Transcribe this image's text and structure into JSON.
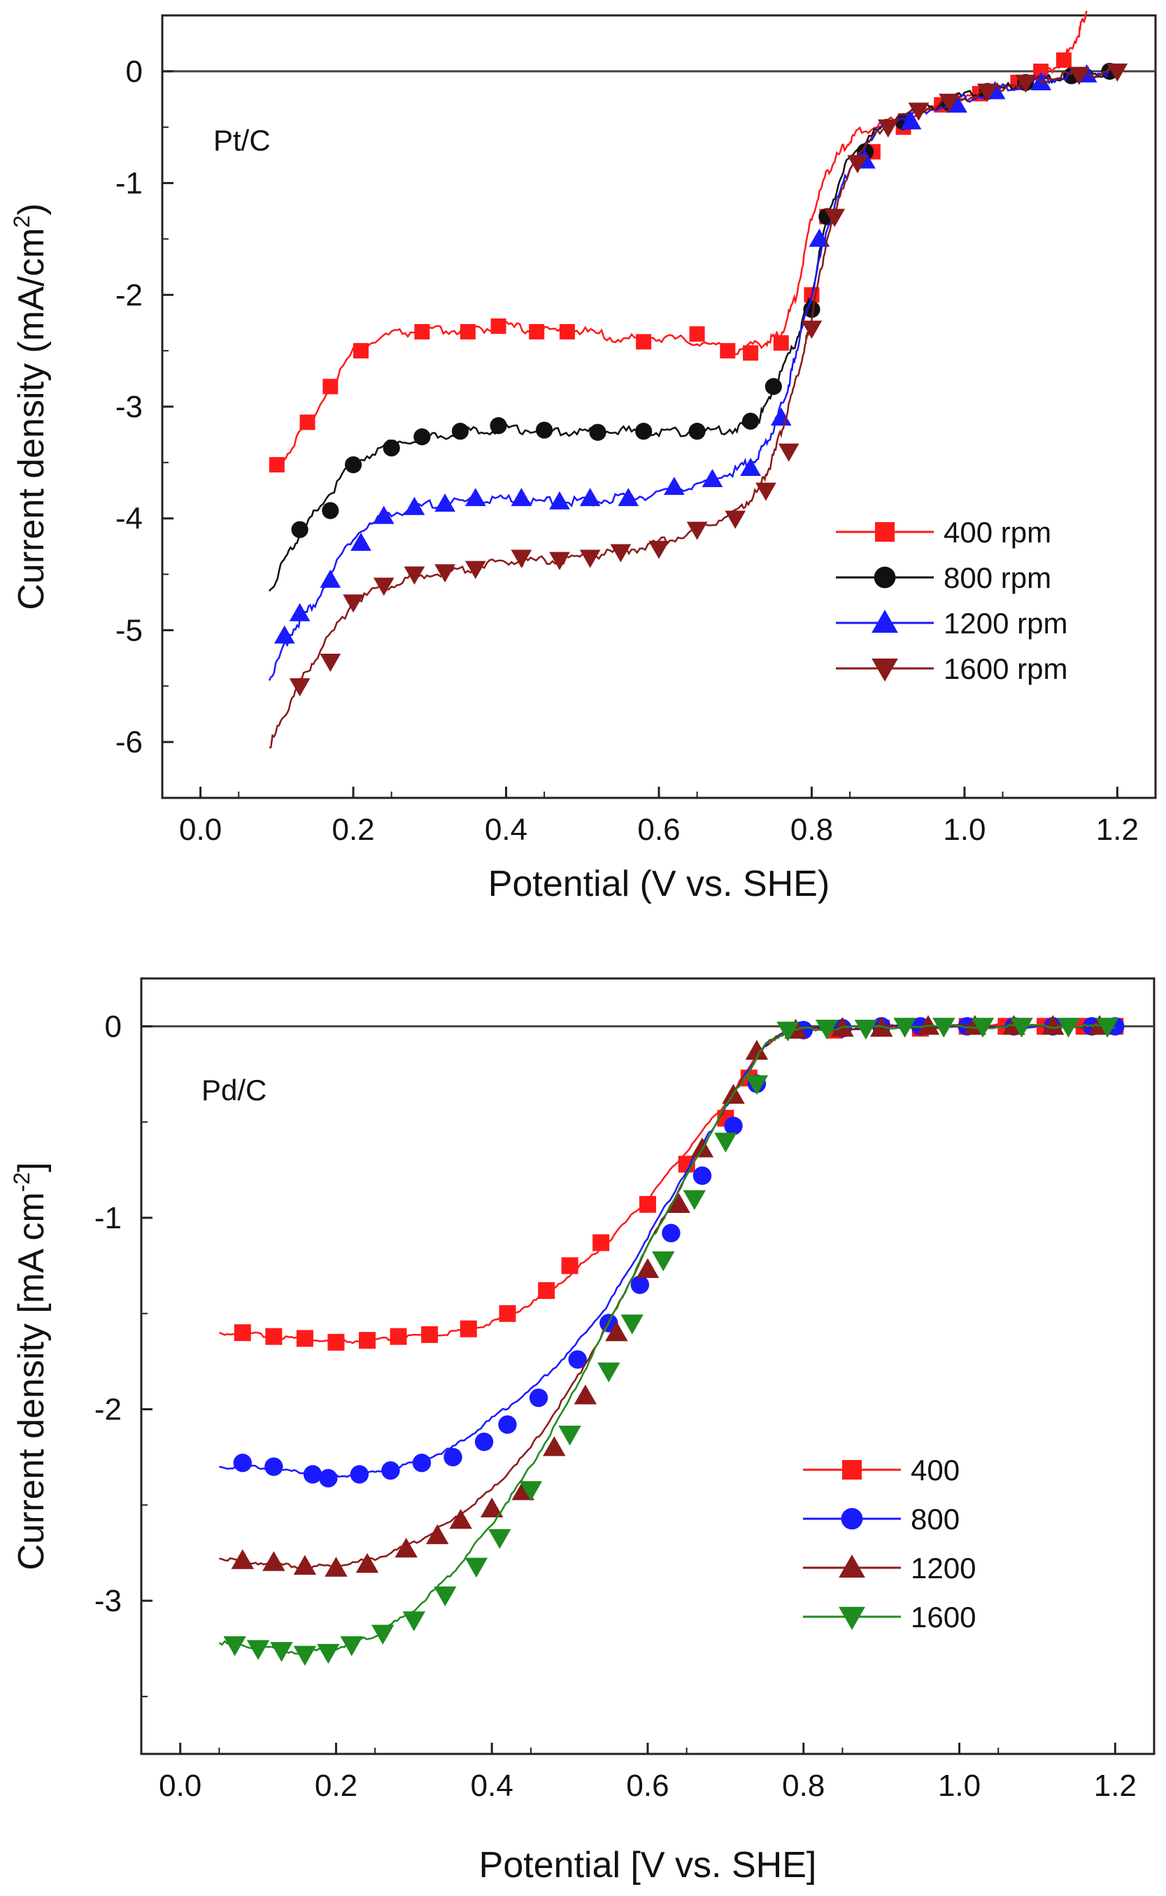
{
  "chart_data": [
    {
      "type": "line",
      "id": "top",
      "panel_label": "Pt/C",
      "xlabel": "Potential (V vs. SHE)",
      "ylabel_main": "Current density (mA/cm",
      "ylabel_sup": "2",
      "ylabel_end": ")",
      "xlim": [
        -0.05,
        1.25
      ],
      "ylim": [
        -6.5,
        0.5
      ],
      "xticks": [
        0.0,
        0.2,
        0.4,
        0.6,
        0.8,
        1.0,
        1.2
      ],
      "xtick_labels": [
        "0.0",
        "0.2",
        "0.4",
        "0.6",
        "0.8",
        "1.0",
        "1.2"
      ],
      "yticks": [
        0,
        -1,
        -2,
        -3,
        -4,
        -5,
        -6
      ],
      "ytick_labels": [
        "0",
        "-1",
        "-2",
        "-3",
        "-4",
        "-5",
        "-6"
      ],
      "zero_line": true,
      "legend_position": "lower-right",
      "series": [
        {
          "name": "400 rpm",
          "marker": "square",
          "color": "#ff1a1a",
          "x": [
            0.1,
            0.14,
            0.2,
            0.25,
            0.3,
            0.35,
            0.4,
            0.45,
            0.5,
            0.55,
            0.6,
            0.65,
            0.7,
            0.74,
            0.76,
            0.78,
            0.8,
            0.82,
            0.84,
            0.86,
            0.9,
            0.95,
            1.0,
            1.05,
            1.1,
            1.13,
            1.15,
            1.16
          ],
          "y": [
            -3.55,
            -3.15,
            -2.5,
            -2.35,
            -2.32,
            -2.32,
            -2.28,
            -2.33,
            -2.32,
            -2.4,
            -2.38,
            -2.42,
            -2.5,
            -2.42,
            -2.35,
            -2.0,
            -1.3,
            -0.9,
            -0.7,
            -0.55,
            -0.45,
            -0.35,
            -0.25,
            -0.15,
            -0.05,
            0.1,
            0.35,
            0.55
          ],
          "mx": [
            0.1,
            0.14,
            0.17,
            0.21,
            0.29,
            0.35,
            0.39,
            0.44,
            0.48,
            0.58,
            0.65,
            0.69,
            0.72,
            0.76,
            0.8,
            0.82,
            0.88,
            0.92,
            0.97,
            1.02,
            1.07,
            1.1,
            1.13
          ],
          "my": [
            -3.52,
            -3.14,
            -2.82,
            -2.5,
            -2.33,
            -2.33,
            -2.28,
            -2.33,
            -2.33,
            -2.42,
            -2.35,
            -2.5,
            -2.52,
            -2.43,
            -2.0,
            -1.3,
            -0.72,
            -0.5,
            -0.3,
            -0.2,
            -0.1,
            0.0,
            0.1
          ]
        },
        {
          "name": "800 rpm",
          "marker": "circle",
          "color": "#111111",
          "x": [
            0.09,
            0.12,
            0.15,
            0.2,
            0.25,
            0.3,
            0.35,
            0.4,
            0.45,
            0.5,
            0.55,
            0.6,
            0.65,
            0.7,
            0.73,
            0.75,
            0.78,
            0.8,
            0.82,
            0.85,
            0.9,
            0.95,
            1.0,
            1.05,
            1.1,
            1.15,
            1.2
          ],
          "y": [
            -4.65,
            -4.25,
            -3.95,
            -3.5,
            -3.32,
            -3.28,
            -3.22,
            -3.2,
            -3.22,
            -3.22,
            -3.22,
            -3.23,
            -3.22,
            -3.2,
            -3.12,
            -2.85,
            -2.4,
            -2.0,
            -1.3,
            -0.75,
            -0.45,
            -0.33,
            -0.22,
            -0.15,
            -0.08,
            -0.03,
            0.0
          ],
          "mx": [
            0.13,
            0.17,
            0.2,
            0.25,
            0.29,
            0.34,
            0.39,
            0.45,
            0.52,
            0.58,
            0.65,
            0.72,
            0.75,
            0.8,
            0.82,
            0.87,
            0.92,
            0.98,
            1.03,
            1.08,
            1.14,
            1.19
          ],
          "my": [
            -4.1,
            -3.93,
            -3.52,
            -3.37,
            -3.27,
            -3.22,
            -3.17,
            -3.21,
            -3.23,
            -3.22,
            -3.22,
            -3.13,
            -2.82,
            -2.13,
            -1.3,
            -0.72,
            -0.45,
            -0.28,
            -0.18,
            -0.1,
            -0.04,
            0.0
          ]
        },
        {
          "name": "1200 rpm",
          "marker": "triangle-up",
          "color": "#1a1aff",
          "x": [
            0.09,
            0.12,
            0.15,
            0.2,
            0.25,
            0.3,
            0.35,
            0.4,
            0.45,
            0.5,
            0.55,
            0.6,
            0.65,
            0.7,
            0.73,
            0.75,
            0.77,
            0.78,
            0.8,
            0.82,
            0.85,
            0.9,
            0.95,
            1.0,
            1.05,
            1.1,
            1.15,
            1.2
          ],
          "y": [
            -5.45,
            -5.0,
            -4.75,
            -4.15,
            -3.95,
            -3.88,
            -3.85,
            -3.83,
            -3.85,
            -3.85,
            -3.82,
            -3.78,
            -3.7,
            -3.58,
            -3.45,
            -3.2,
            -2.8,
            -2.5,
            -2.0,
            -1.4,
            -0.85,
            -0.45,
            -0.35,
            -0.25,
            -0.15,
            -0.08,
            -0.03,
            0.0
          ],
          "mx": [
            0.11,
            0.13,
            0.17,
            0.21,
            0.24,
            0.28,
            0.32,
            0.36,
            0.42,
            0.47,
            0.51,
            0.56,
            0.62,
            0.67,
            0.72,
            0.76,
            0.81,
            0.87,
            0.93,
            0.99,
            1.04,
            1.1,
            1.16
          ],
          "my": [
            -5.05,
            -4.85,
            -4.55,
            -4.22,
            -3.98,
            -3.9,
            -3.87,
            -3.82,
            -3.82,
            -3.85,
            -3.82,
            -3.82,
            -3.72,
            -3.65,
            -3.55,
            -3.1,
            -1.5,
            -0.8,
            -0.45,
            -0.3,
            -0.18,
            -0.1,
            -0.03
          ]
        },
        {
          "name": "1600 rpm",
          "marker": "triangle-down",
          "color": "#8b1a1a",
          "x": [
            0.09,
            0.12,
            0.15,
            0.2,
            0.25,
            0.3,
            0.35,
            0.4,
            0.45,
            0.5,
            0.55,
            0.6,
            0.65,
            0.7,
            0.73,
            0.75,
            0.77,
            0.79,
            0.8,
            0.82,
            0.85,
            0.9,
            0.95,
            1.0,
            1.05,
            1.1,
            1.15,
            1.2
          ],
          "y": [
            -6.05,
            -5.6,
            -5.25,
            -4.75,
            -4.58,
            -4.5,
            -4.45,
            -4.38,
            -4.38,
            -4.35,
            -4.3,
            -4.22,
            -4.1,
            -3.95,
            -3.75,
            -3.45,
            -3.0,
            -2.5,
            -2.2,
            -1.5,
            -0.85,
            -0.45,
            -0.33,
            -0.23,
            -0.13,
            -0.07,
            -0.03,
            0.0
          ],
          "mx": [
            0.13,
            0.17,
            0.2,
            0.24,
            0.28,
            0.32,
            0.36,
            0.42,
            0.47,
            0.51,
            0.55,
            0.6,
            0.65,
            0.7,
            0.74,
            0.77,
            0.8,
            0.83,
            0.86,
            0.9,
            0.94,
            0.98,
            1.03,
            1.08,
            1.15,
            1.2
          ],
          "my": [
            -5.5,
            -5.28,
            -4.75,
            -4.6,
            -4.5,
            -4.48,
            -4.45,
            -4.35,
            -4.37,
            -4.35,
            -4.3,
            -4.27,
            -4.1,
            -4.0,
            -3.75,
            -3.4,
            -2.3,
            -1.3,
            -0.82,
            -0.5,
            -0.35,
            -0.27,
            -0.18,
            -0.1,
            -0.03,
            0.0
          ]
        }
      ]
    },
    {
      "type": "line",
      "id": "bottom",
      "panel_label": "Pd/C",
      "xlabel": "Potential [V vs. SHE]",
      "ylabel_main": "Current density [mA cm",
      "ylabel_sup": "-2",
      "ylabel_end": "]",
      "xlim": [
        -0.05,
        1.25
      ],
      "ylim": [
        -3.8,
        0.25
      ],
      "xticks": [
        0.0,
        0.2,
        0.4,
        0.6,
        0.8,
        1.0,
        1.2
      ],
      "xtick_labels": [
        "0.0",
        "0.2",
        "0.4",
        "0.6",
        "0.8",
        "1.0",
        "1.2"
      ],
      "yticks": [
        0,
        -1,
        -2,
        -3
      ],
      "ytick_labels": [
        "0",
        "-1",
        "-2",
        "-3"
      ],
      "zero_line": true,
      "legend_position": "lower-right",
      "series": [
        {
          "name": "400",
          "marker": "square",
          "color": "#ff1a1a",
          "x": [
            0.05,
            0.1,
            0.15,
            0.2,
            0.25,
            0.3,
            0.35,
            0.4,
            0.45,
            0.5,
            0.55,
            0.6,
            0.65,
            0.7,
            0.75,
            0.78,
            0.85,
            0.95,
            1.05,
            1.15,
            1.2
          ],
          "y": [
            -1.6,
            -1.61,
            -1.63,
            -1.65,
            -1.64,
            -1.62,
            -1.6,
            -1.55,
            -1.45,
            -1.3,
            -1.12,
            -0.9,
            -0.65,
            -0.4,
            -0.1,
            -0.02,
            -0.01,
            0.0,
            0.0,
            0.0,
            0.0
          ],
          "mx": [
            0.08,
            0.12,
            0.16,
            0.2,
            0.24,
            0.28,
            0.32,
            0.37,
            0.42,
            0.47,
            0.5,
            0.54,
            0.6,
            0.65,
            0.7,
            0.73,
            0.79,
            0.84,
            0.9,
            0.95,
            1.01,
            1.06,
            1.11,
            1.16,
            1.2
          ],
          "my": [
            -1.6,
            -1.62,
            -1.63,
            -1.65,
            -1.64,
            -1.62,
            -1.61,
            -1.58,
            -1.5,
            -1.38,
            -1.25,
            -1.13,
            -0.93,
            -0.72,
            -0.48,
            -0.27,
            -0.02,
            -0.02,
            -0.01,
            -0.01,
            0.0,
            0.0,
            0.0,
            0.0,
            0.0
          ]
        },
        {
          "name": "800",
          "marker": "circle",
          "color": "#1a1aff",
          "x": [
            0.05,
            0.1,
            0.15,
            0.2,
            0.25,
            0.3,
            0.35,
            0.4,
            0.45,
            0.5,
            0.55,
            0.6,
            0.65,
            0.7,
            0.75,
            0.78,
            0.85,
            0.95,
            1.05,
            1.15,
            1.2
          ],
          "y": [
            -2.3,
            -2.3,
            -2.33,
            -2.35,
            -2.33,
            -2.28,
            -2.2,
            -2.05,
            -1.9,
            -1.7,
            -1.45,
            -1.1,
            -0.75,
            -0.42,
            -0.1,
            -0.02,
            -0.01,
            0.0,
            0.0,
            0.0,
            0.0
          ],
          "mx": [
            0.08,
            0.12,
            0.17,
            0.19,
            0.23,
            0.27,
            0.31,
            0.35,
            0.39,
            0.42,
            0.46,
            0.51,
            0.55,
            0.59,
            0.63,
            0.67,
            0.71,
            0.74,
            0.8,
            0.85,
            0.9,
            0.95,
            1.01,
            1.07,
            1.12,
            1.17,
            1.2
          ],
          "my": [
            -2.28,
            -2.3,
            -2.34,
            -2.36,
            -2.34,
            -2.32,
            -2.28,
            -2.25,
            -2.17,
            -2.08,
            -1.94,
            -1.74,
            -1.55,
            -1.35,
            -1.08,
            -0.78,
            -0.52,
            -0.3,
            -0.02,
            -0.01,
            0.0,
            0.0,
            0.0,
            0.0,
            0.0,
            0.0,
            0.0
          ]
        },
        {
          "name": "1200",
          "marker": "triangle-up",
          "color": "#8b1a1a",
          "x": [
            0.05,
            0.1,
            0.15,
            0.2,
            0.25,
            0.3,
            0.35,
            0.4,
            0.45,
            0.5,
            0.55,
            0.6,
            0.65,
            0.7,
            0.75,
            0.78,
            0.85,
            0.95,
            1.05,
            1.15,
            1.2
          ],
          "y": [
            -2.78,
            -2.8,
            -2.82,
            -2.82,
            -2.78,
            -2.7,
            -2.58,
            -2.42,
            -2.2,
            -1.9,
            -1.55,
            -1.15,
            -0.78,
            -0.42,
            -0.1,
            -0.02,
            -0.01,
            0.0,
            0.0,
            0.0,
            0.0
          ],
          "mx": [
            0.08,
            0.12,
            0.16,
            0.2,
            0.24,
            0.29,
            0.33,
            0.36,
            0.4,
            0.44,
            0.48,
            0.52,
            0.56,
            0.6,
            0.64,
            0.67,
            0.71,
            0.74,
            0.79,
            0.85,
            0.9,
            0.96,
            1.02,
            1.07,
            1.12,
            1.18
          ],
          "my": [
            -2.79,
            -2.8,
            -2.82,
            -2.83,
            -2.81,
            -2.73,
            -2.66,
            -2.58,
            -2.52,
            -2.43,
            -2.2,
            -1.93,
            -1.6,
            -1.27,
            -0.93,
            -0.64,
            -0.36,
            -0.13,
            -0.02,
            -0.01,
            -0.01,
            0.0,
            0.0,
            0.0,
            0.0,
            0.0
          ]
        },
        {
          "name": "1600",
          "marker": "triangle-down",
          "color": "#1e8c1e",
          "x": [
            0.05,
            0.1,
            0.15,
            0.2,
            0.25,
            0.3,
            0.35,
            0.4,
            0.45,
            0.5,
            0.55,
            0.6,
            0.65,
            0.7,
            0.75,
            0.78,
            0.85,
            0.95,
            1.05,
            1.15,
            1.2
          ],
          "y": [
            -3.22,
            -3.24,
            -3.27,
            -3.25,
            -3.18,
            -3.05,
            -2.85,
            -2.6,
            -2.3,
            -1.95,
            -1.55,
            -1.15,
            -0.78,
            -0.42,
            -0.1,
            -0.02,
            -0.01,
            0.0,
            0.0,
            0.0,
            0.0
          ],
          "mx": [
            0.07,
            0.1,
            0.13,
            0.16,
            0.19,
            0.22,
            0.26,
            0.3,
            0.34,
            0.38,
            0.41,
            0.45,
            0.5,
            0.55,
            0.58,
            0.62,
            0.66,
            0.7,
            0.74,
            0.78,
            0.83,
            0.88,
            0.93,
            0.98,
            1.03,
            1.08,
            1.14,
            1.19
          ],
          "my": [
            -3.23,
            -3.25,
            -3.26,
            -3.28,
            -3.27,
            -3.23,
            -3.17,
            -3.1,
            -2.97,
            -2.82,
            -2.67,
            -2.42,
            -2.13,
            -1.8,
            -1.55,
            -1.22,
            -0.9,
            -0.6,
            -0.3,
            -0.02,
            -0.01,
            -0.01,
            0.0,
            0.0,
            0.0,
            0.0,
            0.0,
            0.0
          ]
        }
      ]
    }
  ]
}
